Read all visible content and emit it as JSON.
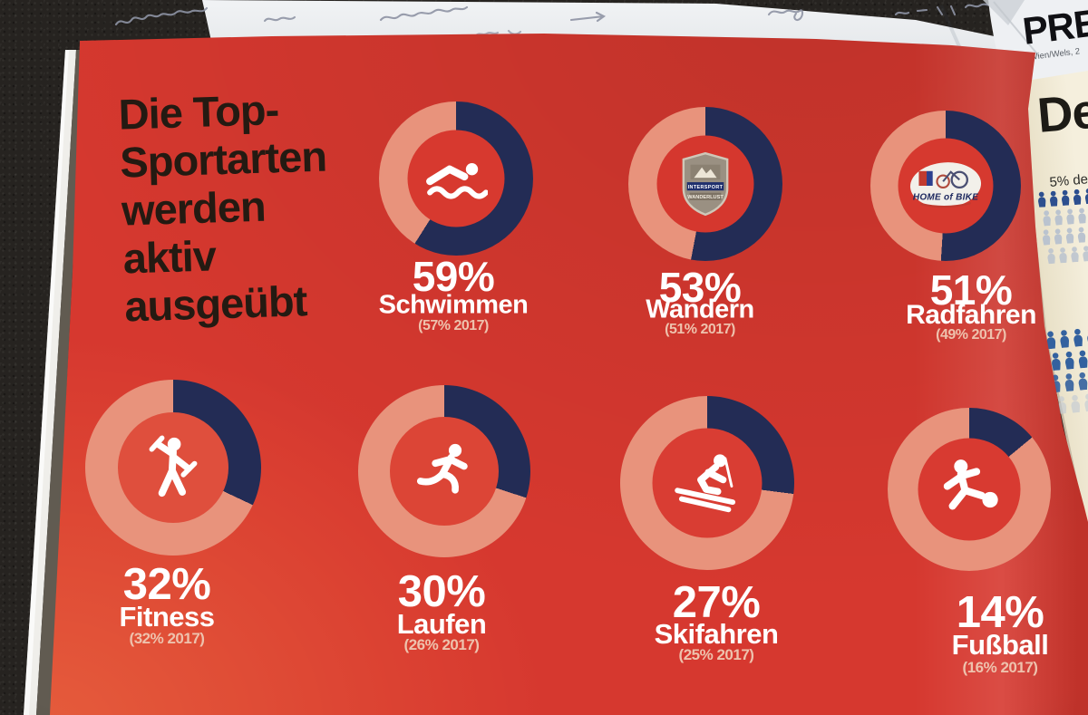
{
  "chart_data": {
    "type": "pie",
    "variant": "donut-percentage-grid",
    "title": "Die Top-Sportarten werden aktiv ausgeübt",
    "title_lines": [
      "Die Top-",
      "Sportarten",
      "werden",
      "aktiv",
      "ausgeübt"
    ],
    "units": "%",
    "legend_position": "none",
    "colors": {
      "value_arc": "#232c55",
      "remainder_arc": "#e8937c",
      "page_background": "#d6382f",
      "value_text": "#ffffff",
      "previous_text": "#eec2ad",
      "title_text": "#241a12"
    },
    "series": [
      {
        "label": "Schwimmen",
        "value": 59,
        "percent_label": "59%",
        "previous_value": 57,
        "previous_year": 2017,
        "previous_label": "(57% 2017)",
        "icon": "swimmer-icon"
      },
      {
        "label": "Wandern",
        "value": 53,
        "percent_label": "53%",
        "previous_value": 51,
        "previous_year": 2017,
        "previous_label": "(51% 2017)",
        "icon": "intersport-wanderlust-badge",
        "badge_line1": "INTERSPORT",
        "badge_line2": "WANDERLUST"
      },
      {
        "label": "Radfahren",
        "value": 51,
        "percent_label": "51%",
        "previous_value": 49,
        "previous_year": 2017,
        "previous_label": "(49% 2017)",
        "icon": "home-of-bike-logo",
        "logo_text": "HOME of BIKE"
      },
      {
        "label": "Fitness",
        "value": 32,
        "percent_label": "32%",
        "previous_value": 32,
        "previous_year": 2017,
        "previous_label": "(32% 2017)",
        "icon": "fitness-icon"
      },
      {
        "label": "Laufen",
        "value": 30,
        "percent_label": "30%",
        "previous_value": 26,
        "previous_year": 2017,
        "previous_label": "(26% 2017)",
        "icon": "runner-icon"
      },
      {
        "label": "Skifahren",
        "value": 27,
        "percent_label": "27%",
        "previous_value": 25,
        "previous_year": 2017,
        "previous_label": "(25% 2017)",
        "icon": "skier-icon"
      },
      {
        "label": "Fußball",
        "value": 14,
        "percent_label": "14%",
        "previous_value": 16,
        "previous_year": 2017,
        "previous_label": "(16% 2017)",
        "icon": "footballer-icon"
      }
    ]
  },
  "surroundings": {
    "note_paper": {
      "description": "illegible handwritten pen notes on white paper"
    },
    "press_sheet": {
      "headline_partial": "PRE",
      "subline_partial": "Wien/Wels, 2"
    },
    "adjacent_page": {
      "headline_partial": "De",
      "stat_text_partial": "5% de",
      "pictogram_groups": [
        {
          "rows": 4,
          "first_row_color": "#2d4f8f",
          "other_rows_color": "#bac3cf"
        },
        {
          "rows": 4,
          "first_row_color": "#33619f",
          "other_rows_color": "#c0c9d4"
        }
      ]
    }
  }
}
